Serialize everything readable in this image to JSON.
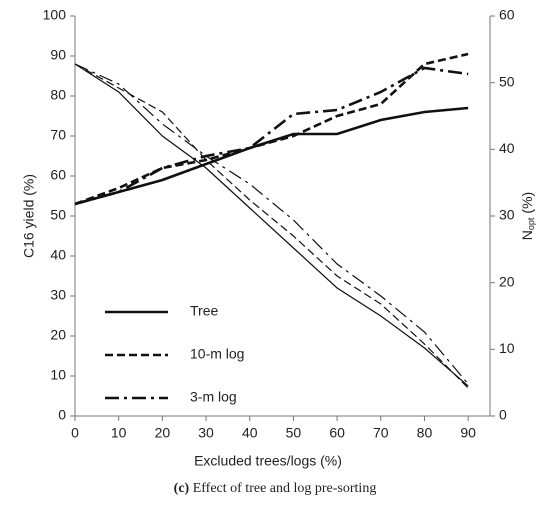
{
  "chart_data": {
    "type": "line",
    "caption_label": "(c)",
    "caption": "Effect of tree and log pre-sorting",
    "xlabel": "Excluded trees/logs (%)",
    "ylabel": "C16 yield (%)",
    "y2label": "N",
    "y2label_sub": "opt",
    "y2label_suffix": "(%)",
    "x": [
      0,
      10,
      20,
      30,
      40,
      50,
      60,
      70,
      80,
      90
    ],
    "xlim": [
      0,
      95
    ],
    "xticks": [
      0,
      10,
      20,
      30,
      40,
      50,
      60,
      70,
      80,
      90
    ],
    "ylim": [
      0,
      100
    ],
    "yticks": [
      0,
      10,
      20,
      30,
      40,
      50,
      60,
      70,
      80,
      90,
      100
    ],
    "y2lim": [
      0,
      60
    ],
    "y2ticks": [
      0,
      10,
      20,
      30,
      40,
      50,
      60
    ],
    "series": [
      {
        "name": "Tree",
        "color": "#111111",
        "dash": "solid",
        "width": "thick",
        "values": [
          53,
          56,
          59,
          63,
          67,
          70.5,
          70.5,
          74,
          76,
          77
        ]
      },
      {
        "name": "10-m log",
        "color": "#111111",
        "dash": "dashed",
        "width": "thick",
        "values": [
          53,
          57,
          62,
          64,
          67,
          70,
          75,
          78,
          88,
          90.5
        ]
      },
      {
        "name": "3-m log",
        "color": "#111111",
        "dash": "dashdot",
        "width": "thick",
        "values": [
          53,
          56,
          62,
          65,
          67,
          75.5,
          76.5,
          81,
          87,
          85.5
        ]
      },
      {
        "color": "#111111",
        "dash": "solid",
        "width": "thin",
        "axis": "y2",
        "values": [
          52.8,
          48.6,
          42,
          37.2,
          31.2,
          25.2,
          19.2,
          15,
          10.2,
          4.5
        ]
      },
      {
        "color": "#111111",
        "dash": "dashed",
        "width": "thin",
        "axis": "y2",
        "values": [
          52.8,
          49.2,
          45.6,
          38.4,
          32.4,
          27,
          21,
          16.8,
          10.8,
          4.2
        ]
      },
      {
        "color": "#111111",
        "dash": "dashdot",
        "width": "thin",
        "axis": "y2",
        "values": [
          52.8,
          49.8,
          43.8,
          39,
          34.8,
          29.4,
          22.8,
          18,
          12.6,
          4.8
        ]
      }
    ]
  }
}
